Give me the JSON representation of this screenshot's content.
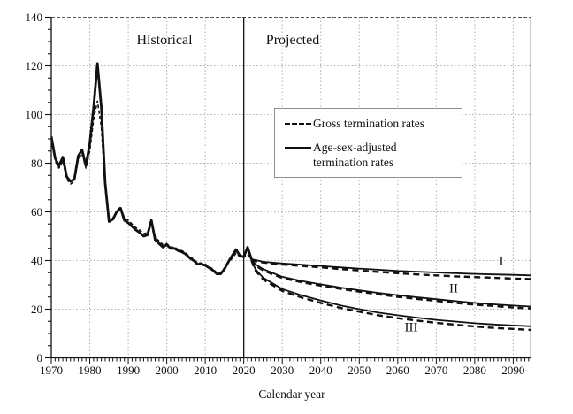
{
  "chart": {
    "region_labels": {
      "historical": "Historical",
      "projected": "Projected"
    },
    "legend": {
      "gross_label": "Gross termination rates",
      "adjusted_label_line1": "Age-sex-adjusted",
      "adjusted_label_line2": "termination rates"
    },
    "scenario_labels": {
      "I": "I",
      "II": "II",
      "III": "III"
    },
    "xlabel": "Calendar year"
  },
  "axes": {
    "x": {
      "tick_labels": [
        "1970",
        "1980",
        "1990",
        "2000",
        "2010",
        "2020",
        "2030",
        "2040",
        "2050",
        "2060",
        "2070",
        "2080",
        "2090"
      ]
    },
    "y": {
      "tick_labels": [
        "0",
        "20",
        "40",
        "60",
        "80",
        "100",
        "120",
        "140"
      ]
    }
  },
  "colors": {
    "line": "#111111",
    "grid": "#b0b0b0",
    "top_border": "#555555",
    "right_border": "#999999"
  },
  "chart_data": {
    "type": "line",
    "title": "",
    "xlabel": "Calendar year",
    "ylabel": "",
    "xlim": [
      1970,
      2094.5
    ],
    "ylim": [
      0,
      140
    ],
    "x_minor_step": 1,
    "y_minor_step": 5,
    "grid": true,
    "divider_year": 2020,
    "annotations": [
      {
        "text": "Historical",
        "x": 1999,
        "y": 133
      },
      {
        "text": "Projected",
        "x": 2033,
        "y": 133
      },
      {
        "text": "I",
        "x": 2087,
        "y": 39.6
      },
      {
        "text": "II",
        "x": 2074,
        "y": 28.3
      },
      {
        "text": "III",
        "x": 2063,
        "y": 12.3
      }
    ],
    "legend_position": "center-right",
    "series": [
      {
        "id": "hist-adjusted",
        "name": "Age-sex-adjusted termination rates (historical)",
        "period": "historical",
        "style": "solid",
        "x_start": 1970,
        "x_step": 1,
        "values": [
          91,
          82,
          79,
          82.5,
          74.5,
          72.5,
          73.5,
          83,
          85.5,
          79,
          88,
          103,
          121,
          103,
          72,
          56,
          57,
          60,
          61.5,
          56.5,
          55.5,
          54,
          52.5,
          51.5,
          50,
          50.5,
          56.5,
          48.5,
          47,
          45.5,
          46.5,
          45,
          45,
          44,
          43.5,
          42.5,
          41,
          40,
          38.5,
          38.5,
          38,
          37,
          36,
          34.5,
          34.5,
          36.5,
          39.5,
          42,
          44.5,
          42,
          41.5,
          45.5,
          40.5
        ]
      },
      {
        "id": "hist-gross",
        "name": "Gross termination rates (historical)",
        "period": "historical",
        "style": "dashed",
        "x_start": 1970,
        "x_step": 1,
        "values": [
          90,
          81,
          78,
          81,
          73.5,
          71.5,
          72.5,
          81.5,
          84,
          78,
          85,
          98,
          105.5,
          95,
          70,
          56,
          57.5,
          60.5,
          62,
          57.5,
          56.5,
          55,
          53.5,
          52.5,
          51,
          51.5,
          56,
          49.5,
          48,
          46.5,
          47,
          45.5,
          45.5,
          44.5,
          44,
          43,
          41.5,
          40.5,
          39,
          39,
          38.5,
          37.5,
          36.5,
          35,
          35,
          37,
          39,
          41,
          43,
          41.5,
          41.5,
          42.5,
          40.5
        ]
      },
      {
        "id": "proj1-adjusted",
        "name": "Age-sex-adjusted termination rates (projected, alternative I)",
        "period": "projected",
        "style": "solid",
        "scenario": "I",
        "x": [
          2022,
          2023,
          2025,
          2030,
          2035,
          2040,
          2045,
          2050,
          2055,
          2060,
          2065,
          2070,
          2075,
          2080,
          2085,
          2090,
          2094.5
        ],
        "values": [
          40.5,
          40.2,
          39.5,
          38.8,
          38.3,
          37.8,
          37.2,
          36.7,
          36.2,
          35.7,
          35.4,
          35.1,
          34.8,
          34.5,
          34.3,
          34.1,
          33.9
        ]
      },
      {
        "id": "proj1-gross",
        "name": "Gross termination rates (projected, alternative I)",
        "period": "projected",
        "style": "dashed",
        "scenario": "I",
        "x": [
          2022,
          2023,
          2025,
          2030,
          2035,
          2040,
          2045,
          2050,
          2055,
          2060,
          2065,
          2070,
          2075,
          2080,
          2085,
          2090,
          2094.5
        ],
        "values": [
          40.5,
          39.8,
          39.2,
          38.4,
          37.8,
          37.2,
          36.5,
          35.9,
          35.3,
          34.8,
          34.3,
          33.9,
          33.5,
          33.2,
          32.9,
          32.6,
          32.4
        ]
      },
      {
        "id": "proj2-adjusted",
        "name": "Age-sex-adjusted termination rates (projected, alternative II)",
        "period": "projected",
        "style": "solid",
        "scenario": "II",
        "x": [
          2022,
          2023,
          2025,
          2030,
          2035,
          2040,
          2045,
          2050,
          2055,
          2060,
          2065,
          2070,
          2075,
          2080,
          2085,
          2090,
          2094.5
        ],
        "values": [
          40.5,
          38.5,
          36.5,
          33.3,
          31.6,
          30.2,
          28.9,
          27.8,
          26.7,
          25.8,
          24.9,
          24.1,
          23.3,
          22.6,
          22,
          21.5,
          21.1
        ]
      },
      {
        "id": "proj2-gross",
        "name": "Gross termination rates (projected, alternative II)",
        "period": "projected",
        "style": "dashed",
        "scenario": "II",
        "x": [
          2022,
          2023,
          2025,
          2030,
          2035,
          2040,
          2045,
          2050,
          2055,
          2060,
          2065,
          2070,
          2075,
          2080,
          2085,
          2090,
          2094.5
        ],
        "values": [
          40.5,
          38,
          36,
          32.8,
          31.1,
          29.7,
          28.4,
          27.2,
          26.1,
          25.1,
          24.2,
          23.4,
          22.6,
          21.9,
          21.3,
          20.7,
          20.3
        ]
      },
      {
        "id": "proj3-adjusted",
        "name": "Age-sex-adjusted termination rates (projected, alternative III)",
        "period": "projected",
        "style": "solid",
        "scenario": "III",
        "x": [
          2022,
          2023,
          2025,
          2030,
          2035,
          2040,
          2045,
          2050,
          2055,
          2060,
          2065,
          2070,
          2075,
          2080,
          2085,
          2090,
          2094.5
        ],
        "values": [
          40.5,
          36.5,
          33,
          28.3,
          25.7,
          23.6,
          21.6,
          20,
          18.6,
          17.5,
          16.5,
          15.6,
          14.9,
          14.2,
          13.7,
          13.3,
          13
        ]
      },
      {
        "id": "proj3-gross",
        "name": "Gross termination rates (projected, alternative III)",
        "period": "projected",
        "style": "dashed",
        "scenario": "III",
        "x": [
          2022,
          2023,
          2025,
          2030,
          2035,
          2040,
          2045,
          2050,
          2055,
          2060,
          2065,
          2070,
          2075,
          2080,
          2085,
          2090,
          2094.5
        ],
        "values": [
          40,
          36,
          32.3,
          27.5,
          24.8,
          22.6,
          20.6,
          19,
          17.5,
          16.3,
          15.3,
          14.4,
          13.6,
          12.9,
          12.3,
          11.9,
          11.5
        ]
      }
    ]
  }
}
